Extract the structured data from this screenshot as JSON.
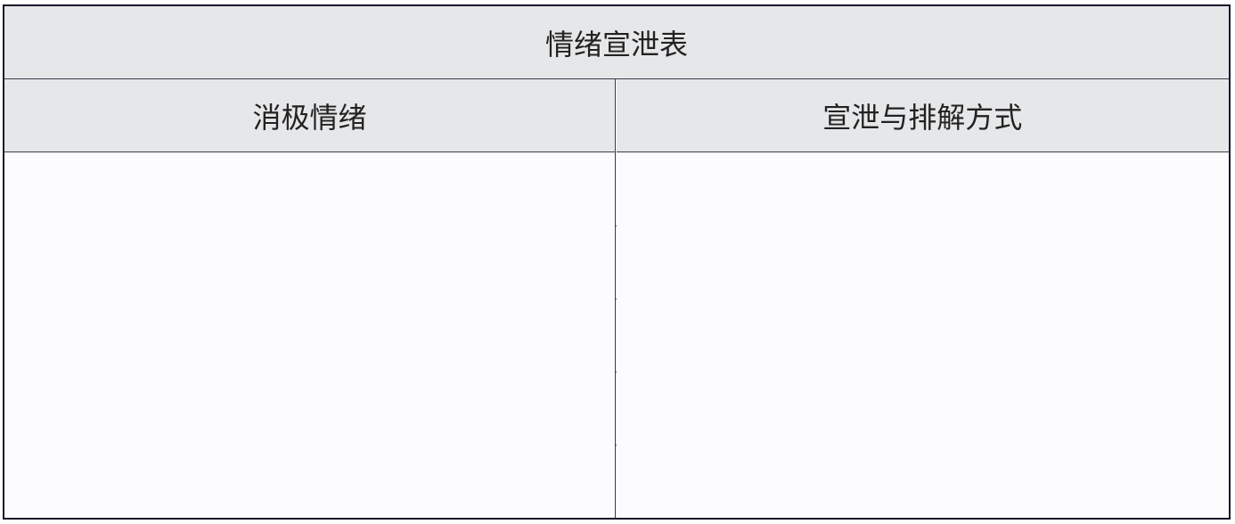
{
  "table": {
    "title": "情绪宣泄表",
    "columns": [
      "消极情绪",
      "宣泄与排解方式"
    ],
    "rows": [
      [
        "",
        ""
      ],
      [
        "",
        ""
      ],
      [
        "",
        ""
      ],
      [
        "",
        ""
      ],
      [
        "",
        ""
      ]
    ]
  }
}
